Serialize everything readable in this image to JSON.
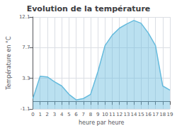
{
  "chart_data": {
    "type": "area",
    "title": "Evolution de la température",
    "xlabel": "heure par heure",
    "ylabel": "Température en °C",
    "color": "#66bbdd",
    "x": [
      0,
      1,
      2,
      3,
      4,
      5,
      6,
      7,
      8,
      9,
      10,
      11,
      12,
      13,
      14,
      15,
      16,
      17,
      18,
      19
    ],
    "values": [
      0.4,
      3.6,
      3.5,
      2.8,
      2.2,
      1.0,
      0.2,
      0.4,
      1.0,
      4.2,
      8.0,
      9.5,
      10.5,
      11.1,
      11.6,
      11.2,
      9.8,
      8.0,
      2.2,
      1.6
    ],
    "xlim": [
      0,
      19
    ],
    "xticks": [
      0,
      1,
      2,
      3,
      4,
      5,
      6,
      7,
      8,
      9,
      10,
      11,
      12,
      13,
      14,
      15,
      16,
      17,
      18,
      19
    ],
    "ylim": [
      -1.1,
      12.1
    ],
    "yticks": [
      -1.1,
      3.3,
      7.7,
      12.1
    ],
    "grid": true
  }
}
